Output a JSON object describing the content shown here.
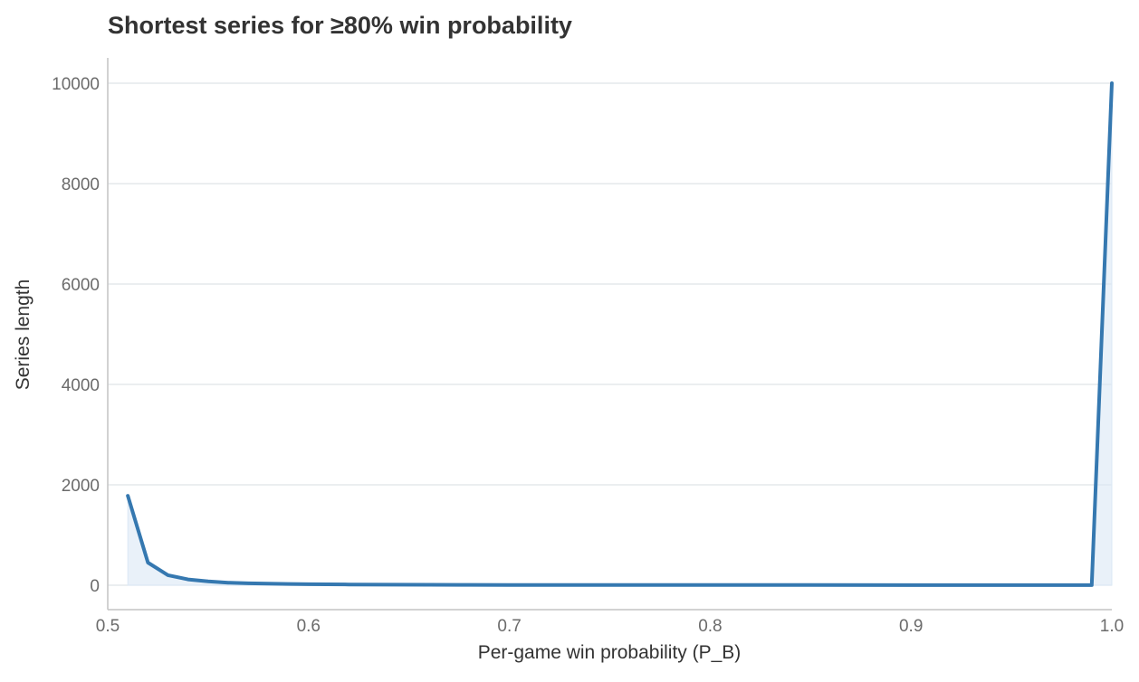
{
  "chart_data": {
    "type": "line",
    "title": "Shortest series for ≥80% win probability",
    "xlabel": "Per-game win probability (P_B)",
    "ylabel": "Series length",
    "xlim": [
      0.5,
      1.0
    ],
    "ylim": [
      0,
      10000
    ],
    "x_ticks": [
      0.5,
      0.6,
      0.7,
      0.8,
      0.9,
      1.0
    ],
    "x_tick_labels": [
      "0.5",
      "0.6",
      "0.7",
      "0.8",
      "0.9",
      "1.0"
    ],
    "y_ticks": [
      0,
      2000,
      4000,
      6000,
      8000,
      10000
    ],
    "y_tick_labels": [
      "0",
      "2000",
      "4000",
      "6000",
      "8000",
      "10000"
    ],
    "grid": "horizontal",
    "line_color": "#3578b0",
    "fill_color": "#dbe8f5",
    "series": [
      {
        "x": [
          0.51,
          0.52,
          0.53,
          0.54,
          0.55,
          0.56,
          0.57,
          0.58,
          0.59,
          0.6,
          0.62,
          0.64,
          0.66,
          0.68,
          0.7,
          0.75,
          0.8,
          0.85,
          0.9,
          0.95,
          0.98,
          0.99,
          1.0
        ],
        "y": [
          1780,
          450,
          200,
          115,
          75,
          50,
          38,
          30,
          25,
          20,
          15,
          11,
          9,
          7,
          6,
          5,
          3,
          3,
          1,
          1,
          1,
          1,
          10000
        ]
      }
    ]
  }
}
